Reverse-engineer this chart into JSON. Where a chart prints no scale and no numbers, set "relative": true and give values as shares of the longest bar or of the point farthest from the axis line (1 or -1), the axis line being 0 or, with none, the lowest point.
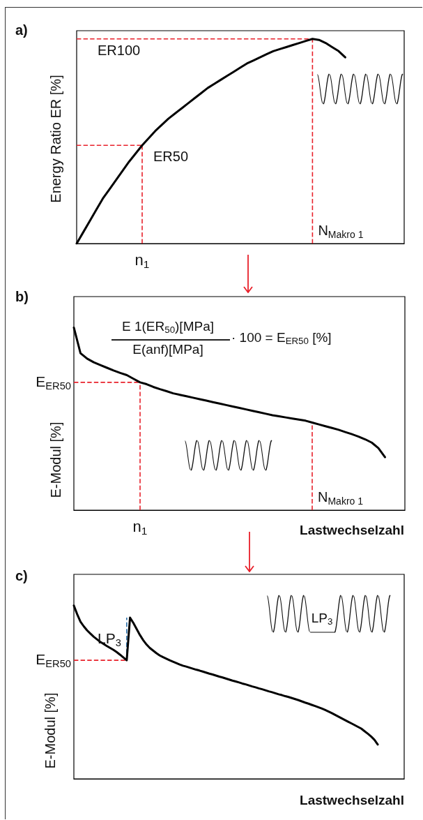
{
  "chart_data": [
    {
      "type": "line",
      "title": "a)",
      "ylabel": "Energy Ratio ER [%]",
      "relative": true,
      "marker": "none",
      "line_style": "solid",
      "categories": [
        null,
        null,
        null,
        null,
        null,
        null,
        null,
        null,
        null,
        null,
        null,
        null,
        null,
        null,
        null,
        null,
        null,
        null,
        null,
        null,
        null,
        null,
        null,
        null,
        null,
        null,
        null,
        null,
        null,
        null,
        null,
        null,
        null,
        null,
        null,
        null,
        null,
        null,
        null,
        null,
        null,
        null,
        null,
        null,
        null,
        null,
        null,
        null,
        null,
        null,
        null
      ],
      "series": [
        {
          "color": "#000000",
          "values": [
            0,
            0.055,
            0.11,
            0.165,
            0.22,
            0.265,
            0.31,
            0.355,
            0.4,
            0.44,
            0.48,
            0.515,
            0.55,
            0.58,
            0.61,
            0.635,
            0.66,
            0.685,
            0.71,
            0.735,
            0.76,
            0.78,
            0.8,
            0.82,
            0.84,
            0.86,
            0.88,
            0.895,
            0.91,
            0.925,
            0.94,
            0.95,
            0.96,
            0.97,
            0.98,
            0.99,
            1,
            0.995,
            0.98,
            0.96,
            0.94,
            0.91,
            null,
            null,
            null,
            null,
            null,
            null,
            null,
            null,
            null
          ]
        }
      ],
      "ref_lines": [
        {
          "axis": "y",
          "value": 1,
          "label": "ER100",
          "color": "#e8202a",
          "line_style": "dashed"
        },
        {
          "axis": "y",
          "value": 0.48,
          "label": "ER50",
          "color": "#e8202a",
          "line_style": "dashed"
        }
      ],
      "annotations": [
        "n$_{1}$",
        "N$_{Makro 1}$"
      ]
    },
    {
      "type": "line",
      "title": "b)",
      "ylabel": "E-Modul [%]",
      "xlabel": "Lastwechselzahl",
      "relative": true,
      "marker": "none",
      "line_style": "solid",
      "categories": [
        null,
        null,
        null,
        null,
        null,
        null,
        null,
        null,
        null,
        null,
        null,
        null,
        null,
        null,
        null,
        null,
        null,
        null,
        null,
        null,
        null,
        null,
        null,
        null,
        null,
        null,
        null,
        null,
        null,
        null,
        null,
        null,
        null,
        null,
        null,
        null,
        null,
        null,
        null,
        null,
        null,
        null,
        null,
        null,
        null,
        null,
        null,
        null,
        null,
        null,
        null
      ],
      "series": [
        {
          "color": "#000000",
          "values": [
            1,
            0.86,
            0.83,
            0.81,
            0.795,
            0.78,
            0.765,
            0.752,
            0.74,
            0.72,
            0.7,
            0.69,
            0.675,
            0.663,
            0.652,
            0.64,
            0.632,
            0.624,
            0.616,
            0.608,
            0.6,
            0.592,
            0.584,
            0.576,
            0.568,
            0.56,
            0.552,
            0.544,
            0.536,
            0.528,
            0.52,
            0.514,
            0.508,
            0.502,
            0.496,
            0.49,
            0.48,
            0.47,
            0.46,
            0.45,
            0.44,
            0.428,
            0.416,
            0.403,
            0.388,
            0.37,
            0.34,
            0.29,
            null,
            null,
            null
          ]
        }
      ],
      "ref_lines": [
        {
          "axis": "y",
          "value": 0.7,
          "label": "E$_{ER50}$",
          "color": "#e8202a",
          "line_style": "dashed"
        }
      ],
      "annotations": [
        "E 1(ER$_{50}$)[MPa]",
        "E(anf)[MPa]",
        "· 100 = E$_{ER50}$ [%]",
        "n$_{1}$",
        "N$_{Makro 1}$"
      ]
    },
    {
      "type": "line",
      "title": "c)",
      "ylabel": "E-Modul [%]",
      "xlabel": "Lastwechselzahl",
      "relative": true,
      "marker": "none",
      "line_style": "solid",
      "categories": [
        null,
        null,
        null,
        null,
        null,
        null,
        null,
        null,
        null,
        null,
        null,
        null,
        null,
        null,
        null,
        null,
        null,
        null,
        null,
        null,
        null,
        null,
        null,
        null,
        null,
        null,
        null,
        null,
        null,
        null,
        null,
        null,
        null,
        null,
        null,
        null,
        null,
        null,
        null,
        null,
        null,
        null,
        null,
        null,
        null,
        null,
        null,
        null,
        null,
        null,
        null,
        null,
        null,
        null,
        null,
        null,
        null,
        null,
        null,
        null,
        null,
        null,
        null,
        null,
        null,
        null,
        null,
        null,
        null,
        null,
        null,
        null,
        null,
        null,
        null,
        null,
        null,
        null,
        null,
        null,
        null,
        null,
        null,
        null,
        null,
        null,
        null,
        null,
        null,
        null,
        null,
        null,
        null,
        null,
        null,
        null,
        null,
        null,
        null,
        null,
        null
      ],
      "series": [
        {
          "color": "#000000",
          "values": [
            1,
            0.95,
            0.907,
            0.88,
            0.857,
            0.838,
            0.82,
            0.805,
            0.79,
            0.778,
            0.766,
            0.755,
            0.744,
            0.731,
            0.716,
            0.7,
            0.684,
            0.93,
            0.9,
            0.865,
            0.83,
            0.8,
            0.775,
            0.755,
            0.74,
            0.725,
            0.712,
            0.702,
            0.693,
            0.684,
            0.676,
            0.668,
            0.66,
            0.653,
            0.648,
            0.642,
            0.636,
            0.63,
            0.625,
            0.619,
            0.613,
            0.607,
            0.602,
            0.596,
            0.59,
            0.585,
            0.579,
            0.573,
            0.567,
            0.562,
            0.556,
            0.55,
            0.545,
            0.539,
            0.533,
            0.528,
            0.522,
            0.517,
            0.511,
            0.505,
            0.5,
            0.494,
            0.488,
            0.483,
            0.477,
            0.472,
            0.466,
            0.46,
            0.454,
            0.447,
            0.44,
            0.434,
            0.427,
            0.42,
            0.413,
            0.406,
            0.398,
            0.389,
            0.38,
            0.37,
            0.36,
            0.35,
            0.34,
            0.33,
            0.32,
            0.31,
            0.3,
            0.29,
            0.275,
            0.26,
            0.244,
            0.225,
            0.198,
            null,
            null,
            null,
            null,
            null,
            null,
            null,
            null
          ]
        }
      ],
      "ref_lines": [
        {
          "axis": "y",
          "value": 0.684,
          "label": "E$_{ER50}$",
          "color": "#e8202a",
          "line_style": "dashed"
        }
      ],
      "annotations": [
        "LP$_{3}$",
        "LP$_{3}$"
      ]
    }
  ]
}
